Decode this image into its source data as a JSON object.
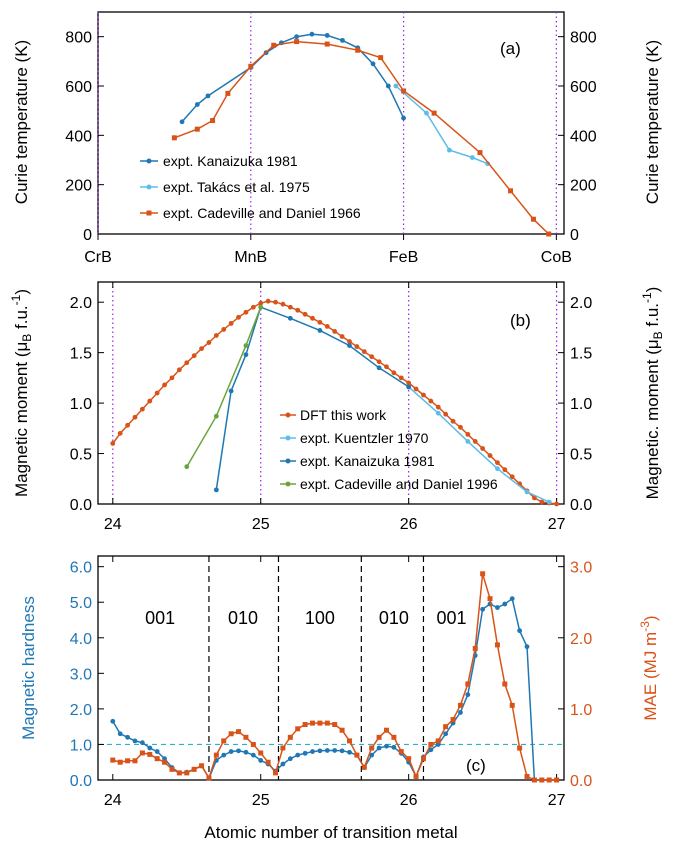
{
  "figure": {
    "colors": {
      "kanaizuka": "#1f77b4",
      "takacs": "#5bbde8",
      "cadeville": "#d95319",
      "dft": "#d95319",
      "kuentzler": "#5bbde8",
      "green": "#6aa53a",
      "hardness": "#1f77b4",
      "mae": "#d95319",
      "dotted_guides": "#a020f0",
      "dashed_guides": "#000000",
      "cyan_ref": "#2ab3c4"
    }
  },
  "chart_data": [
    {
      "id": "a",
      "type": "line",
      "panel_label": "(a)",
      "ylabel_left": "Curie temperature (K)",
      "ylabel_right": "Curie temperature (K)",
      "yticks": [
        "0",
        "200",
        "400",
        "600",
        "800"
      ],
      "ylim": [
        0,
        900
      ],
      "xlim": [
        24,
        27.05
      ],
      "top_tick_labels": [
        "CrB",
        "MnB",
        "FeB",
        "CoB"
      ],
      "top_tick_positions": [
        24,
        25,
        26,
        27
      ],
      "series": [
        {
          "name": "expt. Kanaizuka 1981",
          "color_key": "kanaizuka",
          "x": [
            24.55,
            24.65,
            24.72,
            25.0,
            25.1,
            25.2,
            25.3,
            25.4,
            25.5,
            25.6,
            25.7,
            25.8,
            25.9,
            26.0
          ],
          "y": [
            455,
            525,
            560,
            675,
            735,
            775,
            800,
            810,
            805,
            785,
            755,
            690,
            600,
            470
          ]
        },
        {
          "name": "expt. Takács et al. 1975",
          "color_key": "takacs",
          "x": [
            25.95,
            26.15,
            26.3,
            26.45,
            26.55
          ],
          "y": [
            600,
            490,
            340,
            310,
            285
          ]
        },
        {
          "name": "expt. Cadeville  and Daniel 1966",
          "color_key": "cadeville",
          "x": [
            24.5,
            24.65,
            24.75,
            24.85,
            25.0,
            25.15,
            25.3,
            25.5,
            25.7,
            25.85,
            26.0,
            26.2,
            26.5,
            26.7,
            26.85,
            26.95
          ],
          "y": [
            390,
            425,
            460,
            570,
            680,
            765,
            780,
            770,
            745,
            715,
            580,
            490,
            330,
            175,
            60,
            0
          ]
        }
      ]
    },
    {
      "id": "b",
      "type": "line",
      "panel_label": "(b)",
      "ylabel_left": "Magnetic moment (μB f.u.-1)",
      "ylabel_right": "Magnetic. moment (μB f.u.-1)",
      "yticks": [
        "0.0",
        "0.5",
        "1.0",
        "1.5",
        "2.0"
      ],
      "ylim": [
        0,
        2.2
      ],
      "xlim": [
        23.9,
        27.05
      ],
      "xticks": [
        "24",
        "25",
        "26",
        "27"
      ],
      "series": [
        {
          "name": "DFT this work",
          "color_key": "dft",
          "x": [
            24.0,
            24.05,
            24.1,
            24.15,
            24.2,
            24.25,
            24.3,
            24.35,
            24.4,
            24.45,
            24.5,
            24.55,
            24.6,
            24.65,
            24.7,
            24.75,
            24.8,
            24.85,
            24.9,
            24.95,
            25.0,
            25.05,
            25.1,
            25.15,
            25.2,
            25.25,
            25.3,
            25.35,
            25.4,
            25.45,
            25.5,
            25.55,
            25.6,
            25.65,
            25.7,
            25.75,
            25.8,
            25.85,
            25.9,
            25.95,
            26.0,
            26.05,
            26.1,
            26.15,
            26.2,
            26.25,
            26.3,
            26.35,
            26.4,
            26.45,
            26.5,
            26.55,
            26.6,
            26.65,
            26.7,
            26.75,
            26.8,
            26.85,
            26.9,
            26.95,
            27.0
          ],
          "y": [
            0.6,
            0.7,
            0.78,
            0.86,
            0.94,
            1.02,
            1.1,
            1.18,
            1.25,
            1.33,
            1.4,
            1.47,
            1.54,
            1.6,
            1.67,
            1.73,
            1.79,
            1.85,
            1.9,
            1.95,
            1.99,
            2.01,
            2.0,
            1.98,
            1.95,
            1.92,
            1.88,
            1.84,
            1.8,
            1.76,
            1.71,
            1.66,
            1.61,
            1.56,
            1.51,
            1.46,
            1.41,
            1.36,
            1.3,
            1.25,
            1.2,
            1.14,
            1.08,
            1.02,
            0.96,
            0.89,
            0.82,
            0.76,
            0.69,
            0.62,
            0.55,
            0.48,
            0.41,
            0.34,
            0.27,
            0.2,
            0.13,
            0.06,
            0.02,
            0.01,
            0.0
          ]
        },
        {
          "name": "expt. Kuentzler 1970",
          "color_key": "kuentzler",
          "x": [
            26.0,
            26.2,
            26.4,
            26.6,
            26.8,
            26.95
          ],
          "y": [
            1.16,
            0.9,
            0.62,
            0.35,
            0.12,
            0.02
          ]
        },
        {
          "name": "expt. Kanaizuka 1981",
          "color_key": "kanaizuka",
          "x": [
            24.7,
            24.8,
            24.9,
            25.0,
            25.2,
            25.4,
            25.6,
            25.8,
            26.0
          ],
          "y": [
            0.14,
            1.12,
            1.48,
            1.95,
            1.84,
            1.72,
            1.57,
            1.35,
            1.16
          ]
        },
        {
          "name": "expt. Cadeville and Daniel 1996",
          "color_key": "green",
          "x": [
            24.5,
            24.7,
            24.9,
            25.0
          ],
          "y": [
            0.37,
            0.87,
            1.57,
            1.95
          ]
        }
      ]
    },
    {
      "id": "c",
      "type": "line",
      "panel_label": "(c)",
      "xlabel": "Atomic number of transition metal",
      "ylabel_left": "Magnetic hardness",
      "ylabel_right": "MAE (MJ m-3)",
      "yticks_left": [
        "0.0",
        "1.0",
        "2.0",
        "3.0",
        "4.0",
        "5.0",
        "6.0"
      ],
      "yticks_right": [
        "0.0",
        "1.0",
        "2.0",
        "3.0"
      ],
      "ylim_left": [
        0,
        6.3
      ],
      "ylim_right": [
        0,
        3.15
      ],
      "xlim": [
        23.9,
        27.05
      ],
      "xticks": [
        "24",
        "25",
        "26",
        "27"
      ],
      "region_labels": [
        "001",
        "010",
        "100",
        "010",
        "001"
      ],
      "region_label_x": [
        24.32,
        24.88,
        25.4,
        25.9,
        26.29
      ],
      "dashed_separators_x": [
        24.65,
        25.12,
        25.68,
        26.1
      ],
      "reference_line_y": 1.0,
      "series": [
        {
          "name": "Magnetic hardness",
          "axis": "left",
          "color_key": "hardness",
          "x": [
            24.0,
            24.05,
            24.1,
            24.15,
            24.2,
            24.25,
            24.3,
            24.35,
            24.4,
            24.45,
            24.5,
            24.55,
            24.6,
            24.65,
            24.7,
            24.75,
            24.8,
            24.85,
            24.9,
            24.95,
            25.0,
            25.05,
            25.1,
            25.15,
            25.2,
            25.25,
            25.3,
            25.35,
            25.4,
            25.45,
            25.5,
            25.55,
            25.6,
            25.65,
            25.7,
            25.75,
            25.8,
            25.85,
            25.9,
            25.95,
            26.0,
            26.05,
            26.1,
            26.15,
            26.2,
            26.25,
            26.3,
            26.35,
            26.4,
            26.45,
            26.5,
            26.55,
            26.6,
            26.65,
            26.7,
            26.75,
            26.8,
            26.85,
            26.9,
            26.95,
            27.0
          ],
          "y": [
            1.65,
            1.3,
            1.2,
            1.1,
            1.05,
            0.9,
            0.8,
            0.6,
            0.35,
            0.2,
            0.22,
            0.3,
            0.4,
            0.05,
            0.55,
            0.7,
            0.8,
            0.82,
            0.78,
            0.7,
            0.55,
            0.45,
            0.25,
            0.45,
            0.6,
            0.7,
            0.75,
            0.8,
            0.82,
            0.83,
            0.83,
            0.82,
            0.78,
            0.7,
            0.35,
            0.7,
            0.9,
            0.95,
            0.92,
            0.75,
            0.5,
            0.1,
            0.65,
            0.85,
            1.0,
            1.3,
            1.6,
            1.9,
            2.4,
            3.5,
            4.8,
            4.95,
            4.85,
            4.95,
            5.1,
            4.2,
            3.75,
            0.0,
            0.0,
            0.0,
            0.0
          ]
        },
        {
          "name": "MAE",
          "axis": "right",
          "color_key": "mae",
          "x": [
            24.0,
            24.05,
            24.1,
            24.15,
            24.2,
            24.25,
            24.3,
            24.35,
            24.4,
            24.45,
            24.5,
            24.55,
            24.6,
            24.65,
            24.7,
            24.75,
            24.8,
            24.85,
            24.9,
            24.95,
            25.0,
            25.05,
            25.1,
            25.15,
            25.2,
            25.25,
            25.3,
            25.35,
            25.4,
            25.45,
            25.5,
            25.55,
            25.6,
            25.65,
            25.7,
            25.75,
            25.8,
            25.85,
            25.9,
            25.95,
            26.0,
            26.05,
            26.1,
            26.15,
            26.2,
            26.25,
            26.3,
            26.35,
            26.4,
            26.45,
            26.5,
            26.55,
            26.6,
            26.65,
            26.7,
            26.75,
            26.8,
            26.85,
            26.9,
            26.95,
            27.0
          ],
          "y": [
            0.28,
            0.25,
            0.27,
            0.27,
            0.38,
            0.36,
            0.3,
            0.25,
            0.15,
            0.1,
            0.1,
            0.15,
            0.2,
            0.03,
            0.35,
            0.55,
            0.65,
            0.68,
            0.6,
            0.5,
            0.38,
            0.25,
            0.1,
            0.45,
            0.6,
            0.72,
            0.78,
            0.8,
            0.8,
            0.8,
            0.78,
            0.7,
            0.55,
            0.35,
            0.18,
            0.45,
            0.6,
            0.7,
            0.6,
            0.4,
            0.3,
            0.05,
            0.3,
            0.5,
            0.55,
            0.75,
            0.85,
            1.05,
            1.35,
            1.85,
            2.9,
            2.55,
            1.9,
            1.35,
            1.05,
            0.45,
            0.05,
            0.0,
            0.0,
            0.0,
            0.0
          ]
        }
      ]
    }
  ]
}
